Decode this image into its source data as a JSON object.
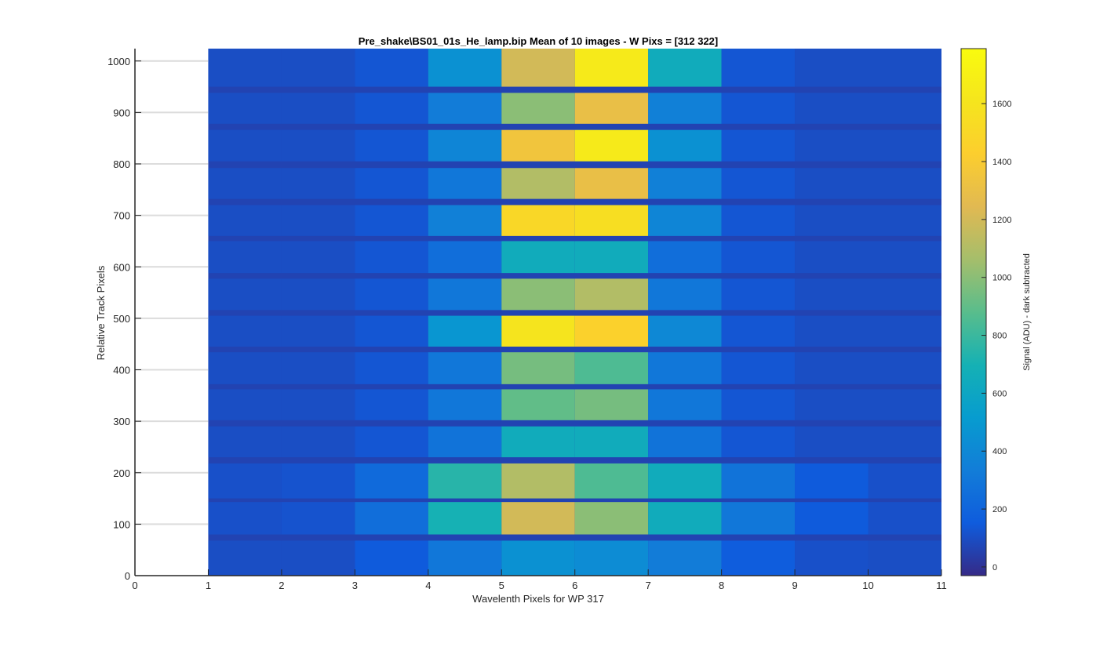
{
  "chart_data": {
    "type": "heatmap",
    "title": "Pre_shake\\BS01_01s_He_lamp.bip  Mean of 10 images - W Pixs = [312  322]",
    "xlabel": "Wavelenth Pixels for WP 317",
    "ylabel": "Relative Track Pixels",
    "xlim": [
      0,
      11
    ],
    "ylim": [
      0,
      1024
    ],
    "xticks": [
      0,
      1,
      2,
      3,
      4,
      5,
      6,
      7,
      8,
      9,
      10,
      11
    ],
    "yticks": [
      0,
      100,
      200,
      300,
      400,
      500,
      600,
      700,
      800,
      900,
      1000
    ],
    "grid": "horizontal",
    "colormap": "parula",
    "colorbar": {
      "label": "Signal (ADU) - dark subtracted",
      "limits": [
        -30,
        1790
      ],
      "ticks": [
        0,
        200,
        400,
        600,
        800,
        1000,
        1200,
        1400,
        1600
      ]
    },
    "column_centers": [
      1.5,
      2.5,
      3.5,
      4.5,
      5.5,
      6.5,
      7.5,
      8.5,
      9.5,
      10.5
    ],
    "background_level": 110,
    "gap_level": 60,
    "tracks": [
      {
        "y0": 0,
        "y1": 68,
        "values": [
          100,
          100,
          150,
          300,
          450,
          420,
          330,
          160,
          110,
          100
        ]
      },
      {
        "y0": 80,
        "y1": 143,
        "values": [
          110,
          120,
          250,
          700,
          1200,
          1000,
          650,
          300,
          150,
          110
        ]
      },
      {
        "y0": 150,
        "y1": 218,
        "values": [
          110,
          120,
          230,
          750,
          1100,
          850,
          650,
          280,
          150,
          110
        ]
      },
      {
        "y0": 230,
        "y1": 290,
        "values": [
          100,
          100,
          130,
          280,
          650,
          650,
          280,
          130,
          100,
          100
        ]
      },
      {
        "y0": 302,
        "y1": 362,
        "values": [
          100,
          100,
          130,
          300,
          900,
          950,
          300,
          130,
          100,
          100
        ]
      },
      {
        "y0": 372,
        "y1": 434,
        "values": [
          100,
          100,
          130,
          300,
          950,
          850,
          300,
          130,
          100,
          100
        ]
      },
      {
        "y0": 445,
        "y1": 505,
        "values": [
          100,
          100,
          130,
          480,
          1600,
          1450,
          400,
          130,
          100,
          100
        ]
      },
      {
        "y0": 516,
        "y1": 577,
        "values": [
          100,
          100,
          130,
          300,
          1000,
          1100,
          300,
          130,
          100,
          100
        ]
      },
      {
        "y0": 588,
        "y1": 650,
        "values": [
          100,
          100,
          130,
          250,
          650,
          650,
          250,
          130,
          100,
          100
        ]
      },
      {
        "y0": 660,
        "y1": 720,
        "values": [
          100,
          100,
          130,
          350,
          1500,
          1550,
          380,
          130,
          100,
          100
        ]
      },
      {
        "y0": 732,
        "y1": 792,
        "values": [
          100,
          100,
          130,
          300,
          1100,
          1300,
          350,
          130,
          100,
          100
        ]
      },
      {
        "y0": 805,
        "y1": 866,
        "values": [
          100,
          100,
          130,
          380,
          1350,
          1650,
          450,
          130,
          100,
          100
        ]
      },
      {
        "y0": 878,
        "y1": 938,
        "values": [
          100,
          100,
          130,
          330,
          1000,
          1300,
          350,
          130,
          100,
          100
        ]
      },
      {
        "y0": 950,
        "y1": 1024,
        "values": [
          100,
          100,
          130,
          450,
          1200,
          1650,
          650,
          130,
          100,
          100
        ]
      }
    ]
  }
}
